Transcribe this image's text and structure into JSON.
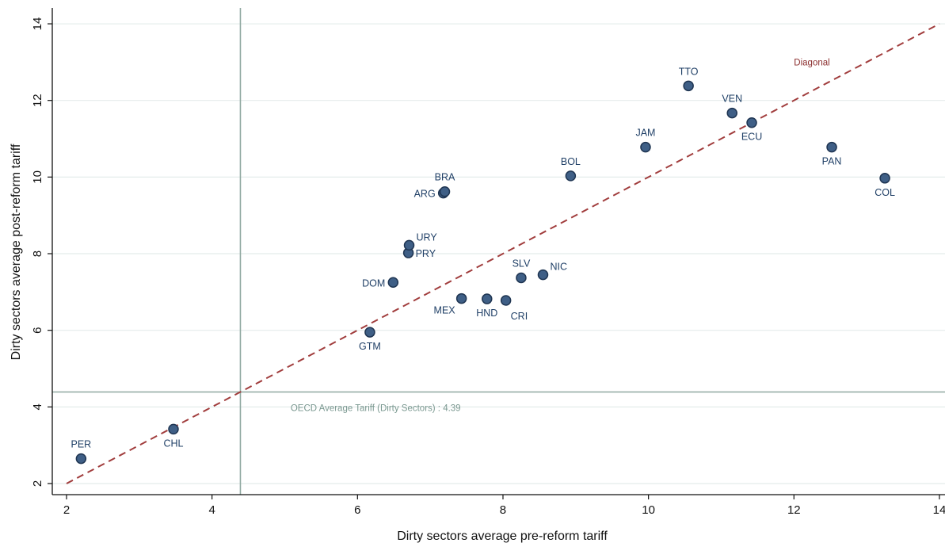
{
  "chart_data": {
    "type": "scatter",
    "xlabel": "Dirty sectors average pre-reform tariff",
    "ylabel": "Dirty sectors average post-reform tariff",
    "xlim": [
      1.9,
      14.1
    ],
    "ylim": [
      1.8,
      14.4
    ],
    "x_ticks": [
      2,
      4,
      6,
      8,
      10,
      12,
      14
    ],
    "y_ticks": [
      2,
      4,
      6,
      8,
      10,
      12,
      14
    ],
    "grid": "horizontal",
    "points": [
      {
        "label": "PER",
        "x": 2.2,
        "y": 2.65,
        "label_pos": "above"
      },
      {
        "label": "CHL",
        "x": 3.47,
        "y": 3.42,
        "label_pos": "below"
      },
      {
        "label": "GTM",
        "x": 6.17,
        "y": 5.95,
        "label_pos": "below"
      },
      {
        "label": "DOM",
        "x": 6.49,
        "y": 7.25,
        "label_pos": "left"
      },
      {
        "label": "PRY",
        "x": 6.7,
        "y": 8.02,
        "label_pos": "right"
      },
      {
        "label": "URY",
        "x": 6.71,
        "y": 8.22,
        "label_pos": "right-up"
      },
      {
        "label": "ARG",
        "x": 7.18,
        "y": 9.58,
        "label_pos": "left"
      },
      {
        "label": "BRA",
        "x": 7.2,
        "y": 9.62,
        "label_pos": "above"
      },
      {
        "label": "MEX",
        "x": 7.43,
        "y": 6.83,
        "label_pos": "below-left"
      },
      {
        "label": "HND",
        "x": 7.78,
        "y": 6.82,
        "label_pos": "below"
      },
      {
        "label": "CRI",
        "x": 8.04,
        "y": 6.78,
        "label_pos": "below-right"
      },
      {
        "label": "SLV",
        "x": 8.25,
        "y": 7.37,
        "label_pos": "above"
      },
      {
        "label": "NIC",
        "x": 8.55,
        "y": 7.45,
        "label_pos": "right-up"
      },
      {
        "label": "BOL",
        "x": 8.93,
        "y": 10.03,
        "label_pos": "above"
      },
      {
        "label": "JAM",
        "x": 9.96,
        "y": 10.78,
        "label_pos": "above"
      },
      {
        "label": "TTO",
        "x": 10.55,
        "y": 12.38,
        "label_pos": "above"
      },
      {
        "label": "VEN",
        "x": 11.15,
        "y": 11.67,
        "label_pos": "above"
      },
      {
        "label": "ECU",
        "x": 11.42,
        "y": 11.42,
        "label_pos": "below"
      },
      {
        "label": "PAN",
        "x": 12.52,
        "y": 10.78,
        "label_pos": "below"
      },
      {
        "label": "COL",
        "x": 13.25,
        "y": 9.97,
        "label_pos": "below"
      }
    ],
    "reference_lines": {
      "vertical_x": 4.39,
      "horizontal_y": 4.39,
      "horizontal_label": "OECD Average Tariff (Dirty Sectors) : 4.39",
      "diagonal_from": [
        2,
        2
      ],
      "diagonal_to": [
        14,
        14
      ],
      "diagonal_label": "Diagonal"
    },
    "colors": {
      "marker_fill": "#3f5f86",
      "marker_stroke": "#1f3552",
      "point_label": "#1f3f66",
      "diagonal": "#a13d3d",
      "reference_line": "#8fa8a0",
      "grid": "#e4eceb",
      "axis": "#111111"
    }
  }
}
